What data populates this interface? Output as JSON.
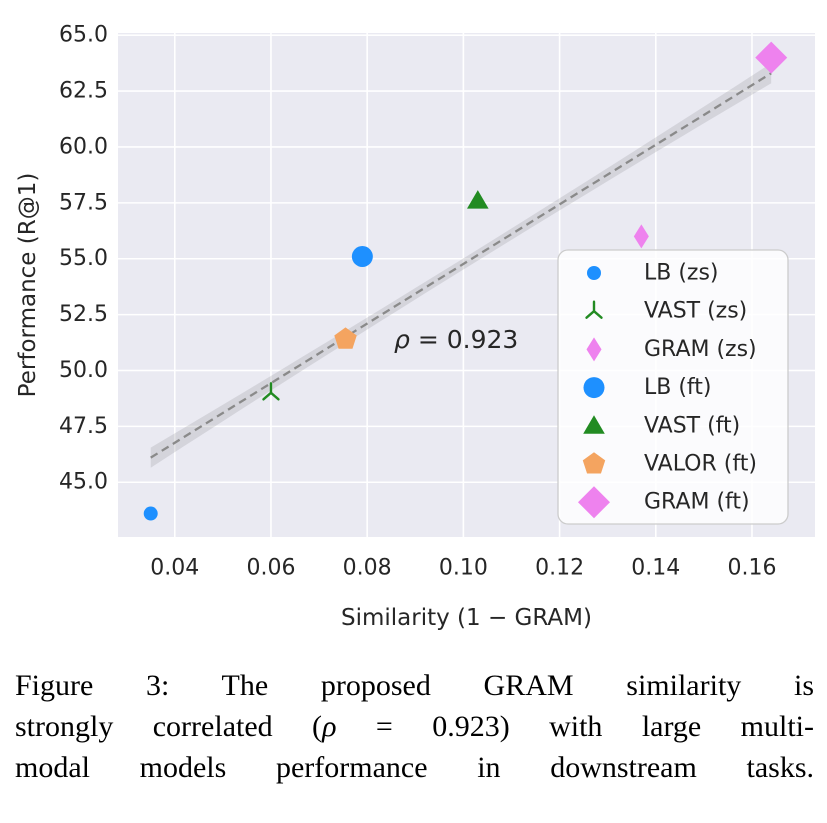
{
  "figure": {
    "caption": {
      "line1": "Figure 3: The proposed GRAM similarity is",
      "line2_pre": "strongly correlated (",
      "line2_rho": "ρ",
      "line2_post": " = 0.923) with large multi-",
      "line3": "modal models performance in downstream tasks."
    }
  },
  "chart_data": {
    "type": "scatter",
    "title": "",
    "xlabel": "Similarity (1 − GRAM)",
    "ylabel": "Performance (R@1)",
    "xlim": [
      0.0282,
      0.1731
    ],
    "ylim": [
      42.55,
      65.1
    ],
    "xticks": [
      0.04,
      0.06,
      0.08,
      0.1,
      0.12,
      0.14,
      0.16
    ],
    "yticks": [
      45.0,
      47.5,
      50.0,
      52.5,
      55.0,
      57.5,
      60.0,
      62.5,
      65.0
    ],
    "grid": true,
    "plot_background": "#EAEAF2",
    "grid_color": "#FFFFFF",
    "annotation": {
      "rho": "ρ",
      "rest": " = 0.923",
      "x": 0.0985,
      "y": 51.4,
      "color": "#2b2b2b"
    },
    "regression": {
      "x_start": 0.035,
      "y_start": 46.1,
      "x_end": 0.164,
      "y_end": 63.3,
      "line_style": "dashed",
      "line_color": "#8a8a8a",
      "band_color": "#9a9aa2",
      "band_halfwidth_end": 0.45,
      "band_halfwidth_mid": 0.25
    },
    "legend_position": "lower-right-inside",
    "series": [
      {
        "name": "LB (zs)",
        "marker": "circle-small",
        "color": "#1E90FF",
        "points": [
          [
            0.035,
            43.6
          ]
        ]
      },
      {
        "name": "VAST (zs)",
        "marker": "tri-down",
        "color": "#228B22",
        "points": [
          [
            0.06,
            49.0
          ]
        ]
      },
      {
        "name": "GRAM (zs)",
        "marker": "thin-diamond",
        "color": "#EE82EE",
        "points": [
          [
            0.137,
            56.0
          ]
        ]
      },
      {
        "name": "LB (ft)",
        "marker": "circle",
        "color": "#1E90FF",
        "points": [
          [
            0.079,
            55.1
          ]
        ]
      },
      {
        "name": "VAST (ft)",
        "marker": "triangle-up",
        "color": "#228B22",
        "points": [
          [
            0.103,
            57.6
          ]
        ]
      },
      {
        "name": "VALOR (ft)",
        "marker": "pentagon",
        "color": "#F4A460",
        "points": [
          [
            0.0755,
            51.4
          ]
        ]
      },
      {
        "name": "GRAM (ft)",
        "marker": "diamond",
        "color": "#EE82EE",
        "points": [
          [
            0.164,
            64.0
          ]
        ]
      }
    ]
  }
}
